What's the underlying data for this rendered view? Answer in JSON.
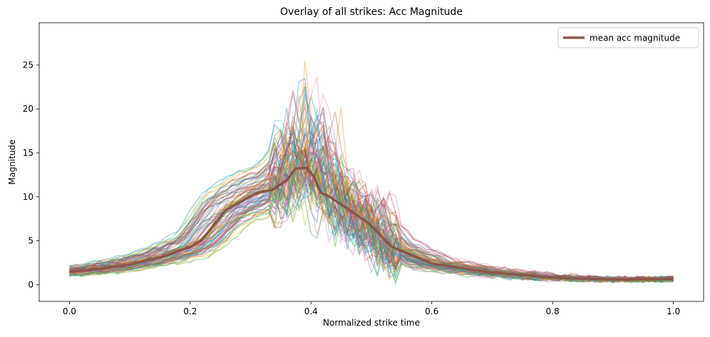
{
  "chart_data": {
    "type": "line",
    "title": "Overlay of all strikes: Acc Magnitude",
    "xlabel": "Normalized strike time",
    "ylabel": "Magnitude",
    "xlim": [
      -0.05,
      1.05
    ],
    "ylim": [
      -1.9,
      29.8
    ],
    "xticks": [
      0.0,
      0.2,
      0.4,
      0.6,
      0.8,
      1.0
    ],
    "xtick_labels": [
      "0.0",
      "0.2",
      "0.4",
      "0.6",
      "0.8",
      "1.0"
    ],
    "yticks": [
      0,
      5,
      10,
      15,
      20,
      25
    ],
    "ytick_labels": [
      "0",
      "5",
      "10",
      "15",
      "20",
      "25"
    ],
    "grid": false,
    "legend": {
      "position": "top-right",
      "entries": [
        "mean acc magnitude"
      ]
    },
    "mean_color": "#8c564b",
    "strike_colors": [
      "#1f77b4",
      "#ff7f0e",
      "#2ca02c",
      "#d62728",
      "#9467bd",
      "#8c564b",
      "#e377c2",
      "#7f7f7f",
      "#bcbd22",
      "#17becf"
    ],
    "series": [
      {
        "name": "mean acc magnitude",
        "x": [
          0.0,
          0.05,
          0.1,
          0.15,
          0.2,
          0.218,
          0.259,
          0.309,
          0.336,
          0.36,
          0.374,
          0.392,
          0.405,
          0.416,
          0.431,
          0.455,
          0.495,
          0.534,
          0.6,
          0.7,
          0.8,
          0.9,
          1.0
        ],
        "y": [
          1.45,
          1.8,
          2.3,
          3.1,
          4.3,
          5.0,
          8.5,
          10.4,
          10.8,
          11.9,
          13.2,
          13.3,
          12.3,
          10.5,
          10.0,
          8.9,
          7.0,
          4.3,
          2.4,
          1.4,
          0.8,
          0.6,
          0.65
        ]
      }
    ]
  }
}
